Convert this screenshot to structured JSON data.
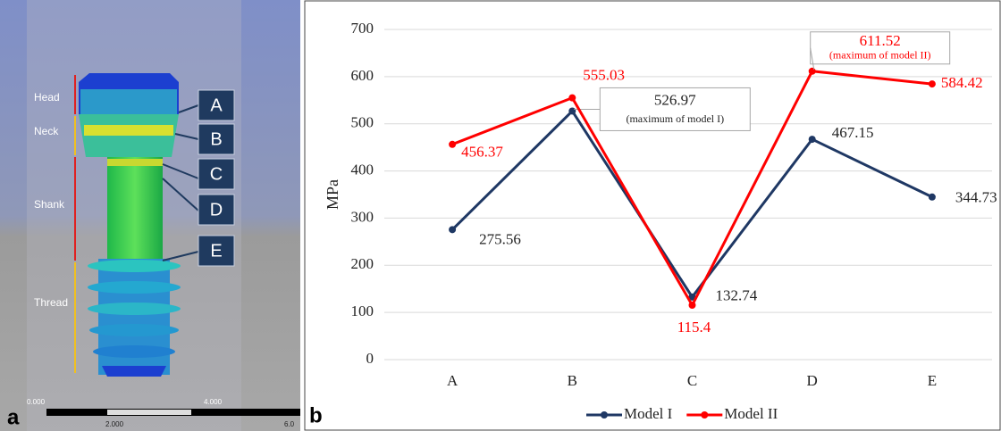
{
  "panel_a": {
    "label": "a",
    "regions": [
      "Head",
      "Neck",
      "Shank",
      "Thread"
    ],
    "points": [
      "A",
      "B",
      "C",
      "D",
      "E"
    ],
    "scale_labels": [
      "0.000",
      "2.000",
      "4.000",
      "6.0"
    ]
  },
  "panel_b_label": "b",
  "chart_data": {
    "type": "line",
    "ylabel": "MPa",
    "categories": [
      "A",
      "B",
      "C",
      "D",
      "E"
    ],
    "series": [
      {
        "name": "Model I",
        "color": "#1f3864",
        "values": [
          275.56,
          526.97,
          132.74,
          467.15,
          344.73
        ],
        "annotation": "(maximum of model I)"
      },
      {
        "name": "Model II",
        "color": "#ff0000",
        "values": [
          456.37,
          555.03,
          115.4,
          611.52,
          584.42
        ],
        "annotation": "(maximum of model II)"
      }
    ],
    "ylim": [
      0,
      700
    ],
    "yticks": [
      0,
      100,
      200,
      300,
      400,
      500,
      600,
      700
    ],
    "grid": true,
    "legend": "bottom"
  }
}
